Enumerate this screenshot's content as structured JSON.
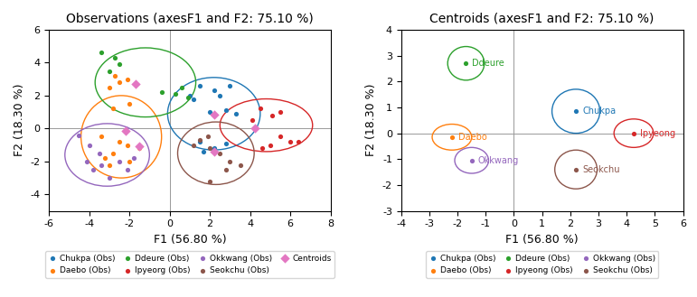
{
  "chart_data": [
    {
      "type": "scatter",
      "title": "Observations (axesF1 and F2: 75.10 %)",
      "x_label": "F1 (56.80 %)",
      "y_label": "F2 (18.30 %)",
      "xlim": [
        -6,
        8
      ],
      "ylim": [
        -5,
        6
      ],
      "xticks": [
        -6,
        -4,
        -2,
        0,
        2,
        4,
        6,
        8
      ],
      "yticks": [
        -4,
        -2,
        0,
        2,
        4,
        6
      ],
      "legend": "upper center",
      "series": [
        {
          "name": "Chukpa (Obs)",
          "x": [
            1.5,
            2.2,
            1.0,
            2.5,
            3.0,
            1.2,
            2.8,
            3.3,
            2.0,
            1.5,
            2.8,
            2.2,
            1.7
          ],
          "values": [
            2.6,
            2.3,
            2.0,
            2.0,
            2.6,
            1.8,
            1.1,
            0.9,
            1.0,
            -0.8,
            -0.9,
            -1.2,
            -1.4
          ],
          "ellipse": {
            "cx": 2.2,
            "cy": 0.9,
            "rx": 2.3,
            "ry": 2.2
          }
        },
        {
          "name": "Daebo (Obs)",
          "x": [
            -2.5,
            -2.1,
            -2.7,
            -3.0,
            -2.0,
            -2.8,
            -2.5,
            -2.1,
            -3.4,
            -2.8,
            -3.2,
            -2.0,
            -3.0,
            -1.5
          ],
          "values": [
            2.8,
            3.0,
            3.2,
            2.5,
            1.5,
            1.2,
            -0.8,
            -1.0,
            -0.5,
            -1.5,
            -1.8,
            -2.0,
            -2.2,
            -1.2
          ],
          "ellipse": {
            "cx": -2.4,
            "cy": -0.5,
            "rx": 2.0,
            "ry": 2.5
          }
        },
        {
          "name": "Ddeure (Obs)",
          "x": [
            -3.4,
            -2.7,
            -2.5,
            -3.0,
            0.6,
            0.9,
            0.3,
            -0.4
          ],
          "values": [
            4.6,
            4.3,
            3.9,
            3.5,
            2.5,
            1.9,
            2.1,
            2.2
          ],
          "ellipse": {
            "cx": -1.2,
            "cy": 2.8,
            "rx": 2.5,
            "ry": 2.1
          }
        },
        {
          "name": "Ipyeorg (Obs)",
          "x": [
            4.5,
            5.1,
            5.5,
            4.1,
            5.5,
            6.0,
            5.0,
            4.6,
            6.4
          ],
          "values": [
            1.2,
            0.8,
            1.0,
            0.5,
            -0.5,
            -0.8,
            -1.0,
            -1.2,
            -0.8
          ],
          "ellipse": {
            "cx": 4.8,
            "cy": 0.2,
            "rx": 2.3,
            "ry": 1.6
          }
        },
        {
          "name": "Okkwang (Obs)",
          "x": [
            -4.5,
            -4.0,
            -3.5,
            -4.1,
            -3.8,
            -2.5,
            -2.1,
            -3.0,
            -1.8,
            -3.4
          ],
          "values": [
            -0.4,
            -1.0,
            -1.5,
            -2.0,
            -2.5,
            -2.0,
            -2.5,
            -3.0,
            -1.8,
            -2.2
          ],
          "ellipse": {
            "cx": -3.1,
            "cy": -1.6,
            "rx": 2.1,
            "ry": 1.9
          }
        },
        {
          "name": "Seokchu (Obs)",
          "x": [
            1.5,
            2.0,
            2.5,
            3.0,
            2.8,
            3.5,
            2.0,
            1.9,
            1.2
          ],
          "values": [
            -0.7,
            -1.2,
            -1.5,
            -2.0,
            -2.5,
            -2.2,
            -3.2,
            -0.5,
            -1.0
          ],
          "ellipse": {
            "cx": 2.3,
            "cy": -1.5,
            "rx": 1.9,
            "ry": 1.9
          }
        },
        {
          "name": "Centroids",
          "marker": "diamond",
          "x": [
            2.2,
            -2.2,
            -1.7,
            4.25,
            -1.5,
            2.2
          ],
          "values": [
            0.85,
            -0.15,
            2.7,
            0.0,
            -1.05,
            -1.4
          ]
        }
      ]
    },
    {
      "type": "scatter",
      "title": "Centroids (axesF1 and F2: 75.10 %)",
      "x_label": "F1 (56.80 %)",
      "y_label": "F2 (18.30 %)",
      "xlim": [
        -4,
        6
      ],
      "ylim": [
        -3,
        4
      ],
      "xticks": [
        -4,
        -3,
        -2,
        -1,
        0,
        1,
        2,
        3,
        4,
        5,
        6
      ],
      "yticks": [
        -3,
        -2,
        -1,
        0,
        1,
        2,
        3,
        4
      ],
      "legend": "upper center",
      "series": [
        {
          "name": "Chukpa (Obs)",
          "label": "Chukpa",
          "x": [
            2.2
          ],
          "values": [
            0.85
          ],
          "ellipse": {
            "cx": 2.2,
            "cy": 0.85,
            "rx": 0.85,
            "ry": 0.85
          }
        },
        {
          "name": "Daebo (Obs)",
          "label": "Daebo",
          "x": [
            -2.2
          ],
          "values": [
            -0.15
          ],
          "ellipse": {
            "cx": -2.2,
            "cy": -0.15,
            "rx": 0.7,
            "ry": 0.5
          }
        },
        {
          "name": "Ddeure (Obs)",
          "label": "Ddeure",
          "x": [
            -1.7
          ],
          "values": [
            2.7
          ],
          "ellipse": {
            "cx": -1.7,
            "cy": 2.7,
            "rx": 0.65,
            "ry": 0.65
          }
        },
        {
          "name": "Ipyeong (Obs)",
          "label": "Ipyeong",
          "x": [
            4.25
          ],
          "values": [
            0.0
          ],
          "ellipse": {
            "cx": 4.25,
            "cy": 0.0,
            "rx": 0.7,
            "ry": 0.55
          }
        },
        {
          "name": "Okkwang (Obs)",
          "label": "Okkwang",
          "x": [
            -1.5
          ],
          "values": [
            -1.05
          ],
          "ellipse": {
            "cx": -1.5,
            "cy": -1.05,
            "rx": 0.6,
            "ry": 0.5
          }
        },
        {
          "name": "Seokchu (Obs)",
          "label": "Seokchu",
          "x": [
            2.2
          ],
          "values": [
            -1.4
          ],
          "ellipse": {
            "cx": 2.2,
            "cy": -1.4,
            "rx": 0.75,
            "ry": 0.75
          }
        }
      ]
    }
  ]
}
